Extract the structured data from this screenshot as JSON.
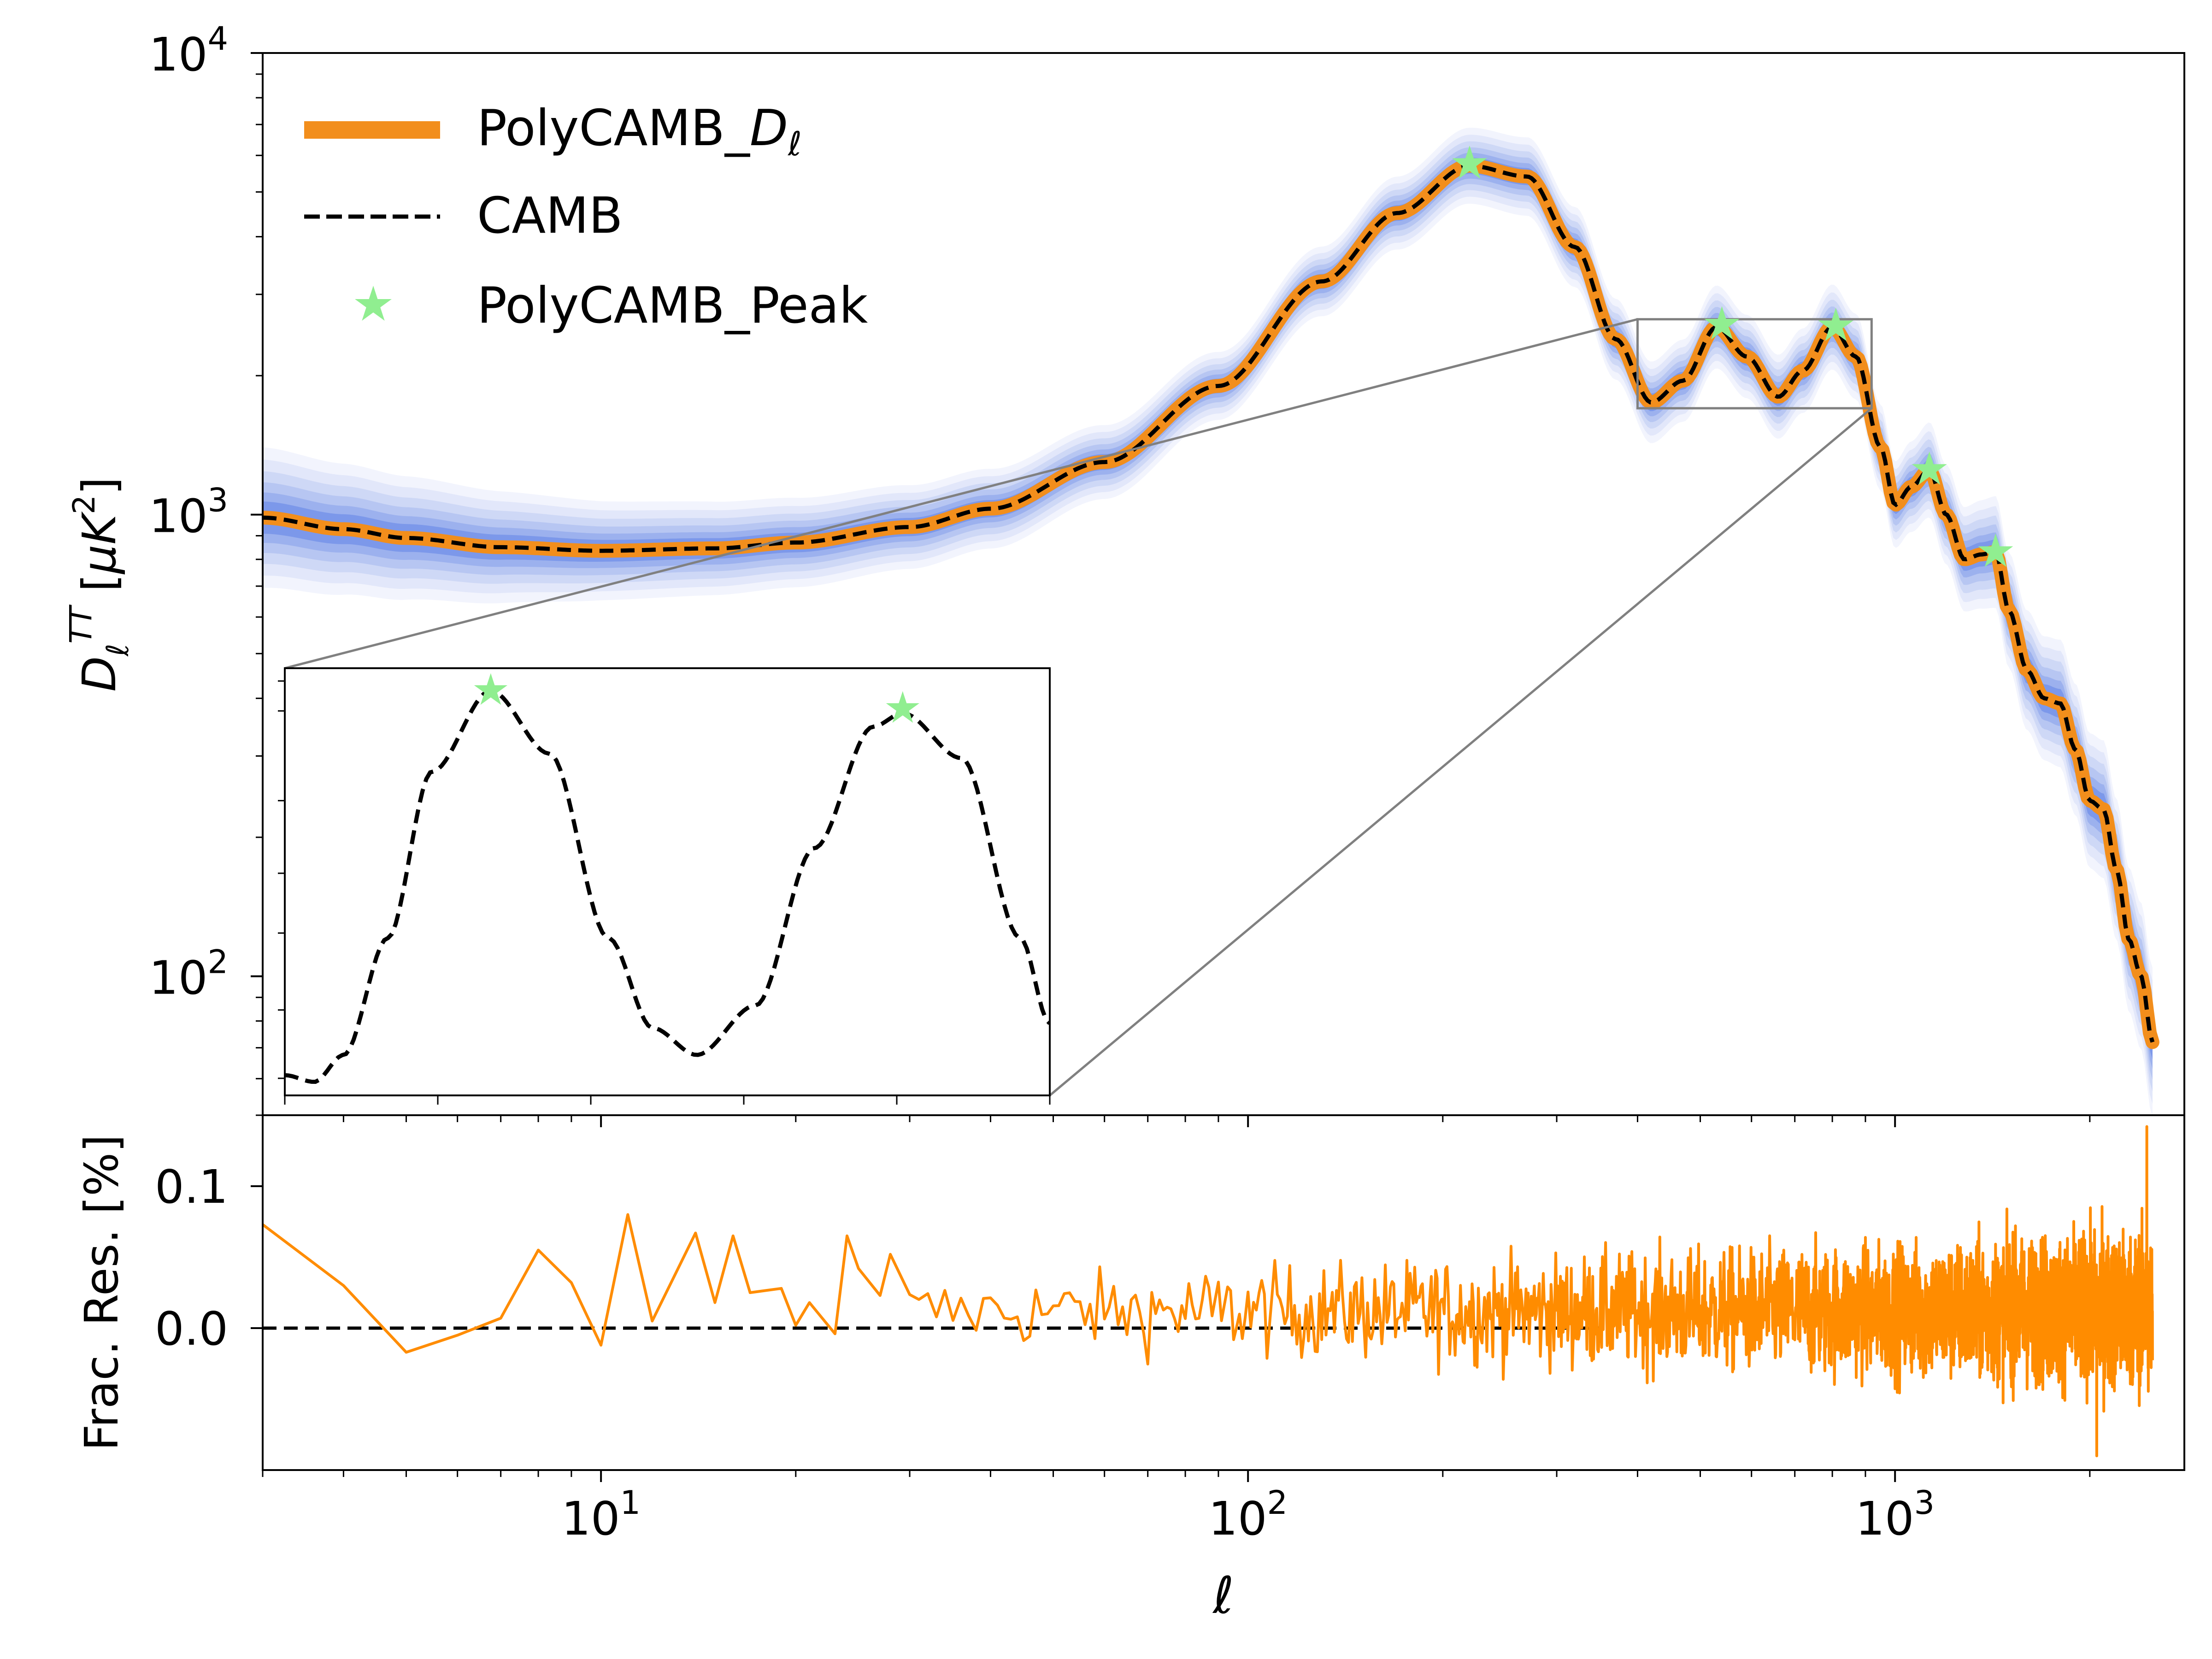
{
  "chart_data": [
    {
      "type": "line",
      "panel": "main",
      "xscale": "log",
      "yscale": "log",
      "xlim": [
        3,
        2800
      ],
      "ylim": [
        50,
        10000
      ],
      "ylabel": "D_ℓ^TT [μK²]",
      "y_ticks": [
        {
          "value": 100,
          "base": "10",
          "exp": "2"
        },
        {
          "value": 1000,
          "base": "10",
          "exp": "3"
        },
        {
          "value": 10000,
          "base": "10",
          "exp": "4"
        }
      ],
      "legend": {
        "placement": "upper-left",
        "entries": [
          {
            "label_main": "PolyCAMB_",
            "label_sub": "D",
            "label_subscript": "ℓ",
            "style": "orange-thick-line"
          },
          {
            "label_main": "CAMB",
            "style": "black-dashed-line"
          },
          {
            "label_main": "PolyCAMB_Peak",
            "style": "green-star"
          }
        ]
      },
      "series": [
        {
          "name": "PolyCAMB_Dℓ",
          "color": "#f28e1c",
          "points": [
            [
              3,
              985
            ],
            [
              4,
              930
            ],
            [
              5,
              890
            ],
            [
              7,
              850
            ],
            [
              10,
              835
            ],
            [
              15,
              845
            ],
            [
              20,
              870
            ],
            [
              30,
              940
            ],
            [
              40,
              1030
            ],
            [
              60,
              1300
            ],
            [
              90,
              1900
            ],
            [
              130,
              3200
            ],
            [
              170,
              4500
            ],
            [
              220,
              5700
            ],
            [
              270,
              5400
            ],
            [
              320,
              3800
            ],
            [
              370,
              2400
            ],
            [
              420,
              1750
            ],
            [
              470,
              1950
            ],
            [
              530,
              2550
            ],
            [
              590,
              2200
            ],
            [
              660,
              1800
            ],
            [
              720,
              2050
            ],
            [
              800,
              2550
            ],
            [
              870,
              2200
            ],
            [
              950,
              1400
            ],
            [
              1000,
              1050
            ],
            [
              1060,
              1150
            ],
            [
              1130,
              1250
            ],
            [
              1200,
              1000
            ],
            [
              1280,
              800
            ],
            [
              1360,
              820
            ],
            [
              1430,
              830
            ],
            [
              1500,
              620
            ],
            [
              1600,
              460
            ],
            [
              1700,
              400
            ],
            [
              1800,
              390
            ],
            [
              1900,
              310
            ],
            [
              2000,
              240
            ],
            [
              2100,
              230
            ],
            [
              2200,
              170
            ],
            [
              2300,
              120
            ],
            [
              2400,
              100
            ],
            [
              2500,
              72
            ]
          ]
        },
        {
          "name": "CAMB",
          "color": "#000000",
          "style": "dashed"
        }
      ],
      "band": {
        "color": "#4169e1",
        "rel_half_width": [
          [
            3,
            0.42
          ],
          [
            10,
            0.28
          ],
          [
            100,
            0.18
          ],
          [
            300,
            0.22
          ],
          [
            1000,
            0.24
          ],
          [
            2500,
            0.45
          ]
        ]
      },
      "peaks": [
        [
          220,
          5750
        ],
        [
          540,
          2580
        ],
        [
          810,
          2560
        ],
        [
          1130,
          1250
        ],
        [
          1430,
          830
        ]
      ],
      "zoom_box": {
        "x": [
          400,
          920
        ],
        "y": [
          1700,
          2650
        ]
      },
      "colors": {
        "orange": "#f28e1c",
        "blue": "#4169e1",
        "star": "#90ee90",
        "connector": "#808080"
      }
    },
    {
      "type": "line",
      "panel": "inset",
      "xlim": [
        400,
        920
      ],
      "ylim": [
        1700,
        2650
      ],
      "series": [
        {
          "name": "CAMB",
          "color": "#000000",
          "style": "dashed",
          "points": [
            [
              400,
              1745
            ],
            [
              420,
              1730
            ],
            [
              440,
              1790
            ],
            [
              470,
              2050
            ],
            [
              500,
              2420
            ],
            [
              540,
              2600
            ],
            [
              580,
              2460
            ],
            [
              620,
              2050
            ],
            [
              650,
              1850
            ],
            [
              680,
              1790
            ],
            [
              720,
              1900
            ],
            [
              760,
              2250
            ],
            [
              800,
              2520
            ],
            [
              820,
              2550
            ],
            [
              860,
              2450
            ],
            [
              900,
              2050
            ],
            [
              920,
              1860
            ]
          ]
        }
      ],
      "peaks": [
        [
          540,
          2600
        ],
        [
          820,
          2560
        ]
      ]
    },
    {
      "type": "line",
      "panel": "residual",
      "xscale": "log",
      "xlim": [
        3,
        2800
      ],
      "ylim": [
        -0.1,
        0.15
      ],
      "xlabel": "ℓ",
      "ylabel": "Frac. Res. [%]",
      "x_ticks": [
        {
          "value": 10,
          "base": "10",
          "exp": "1"
        },
        {
          "value": 100,
          "base": "10",
          "exp": "2"
        },
        {
          "value": 1000,
          "base": "10",
          "exp": "3"
        }
      ],
      "y_ticks": [
        {
          "value": 0.0,
          "label": "0.0"
        },
        {
          "value": 0.1,
          "label": "0.1"
        }
      ],
      "series": [
        {
          "name": "residual",
          "color": "#ff8c00",
          "points": [
            [
              3,
              0.073
            ],
            [
              4,
              0.03
            ],
            [
              5,
              -0.017
            ],
            [
              6,
              -0.005
            ],
            [
              7,
              0.007
            ],
            [
              8,
              0.055
            ],
            [
              9,
              0.032
            ],
            [
              10,
              -0.012
            ],
            [
              11,
              0.08
            ],
            [
              12,
              0.005
            ],
            [
              14,
              0.067
            ],
            [
              15,
              0.018
            ],
            [
              16,
              0.065
            ],
            [
              17,
              0.025
            ],
            [
              19,
              0.028
            ],
            [
              20,
              0.002
            ],
            [
              21,
              0.018
            ],
            [
              23,
              -0.004
            ],
            [
              24,
              0.065
            ],
            [
              25,
              0.042
            ],
            [
              27,
              0.023
            ],
            [
              28,
              0.052
            ]
          ],
          "noise_regime": [
            [
              30,
              0.03
            ],
            [
              100,
              0.04
            ],
            [
              300,
              0.05
            ],
            [
              1000,
              0.06
            ],
            [
              2500,
              0.07
            ]
          ],
          "max_point": [
            2450,
            0.142
          ],
          "min_point": [
            2050,
            -0.09
          ]
        },
        {
          "name": "zero",
          "color": "#000000",
          "style": "dashed",
          "points": [
            [
              3,
              0
            ],
            [
              350,
              0
            ]
          ]
        }
      ]
    }
  ]
}
